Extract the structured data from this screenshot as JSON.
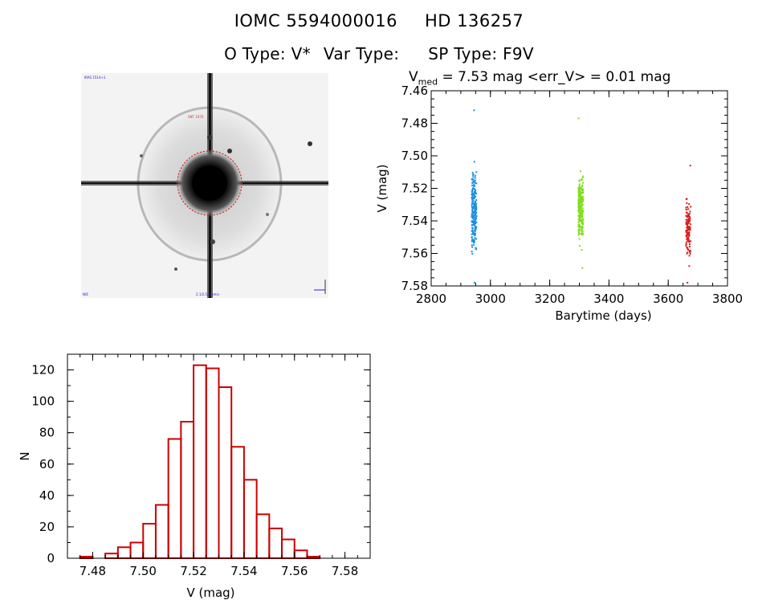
{
  "header": {
    "iomc": "IOMC 5594000016",
    "hd": "HD 136257",
    "otype": "O Type: V*",
    "vartype": "Var Type:",
    "sptype": "SP Type: F9V"
  },
  "lightcurve_title": {
    "v_symbol": "V",
    "v_sub": "med",
    "text": " = 7.53 mag <err_V> = 0.01 mag"
  },
  "colors": {
    "series1": "#1a90e0",
    "series2": "#7ee01a",
    "series3": "#d81e1e",
    "histogram": "#cc0000"
  },
  "chart_data": [
    {
      "type": "scatter",
      "xlabel": "Barytime (days)",
      "ylabel": "V (mag)",
      "xlim": [
        2800,
        3800
      ],
      "ylim": [
        7.58,
        7.46
      ],
      "y_inverted": true,
      "x_ticks": [
        "2800",
        "3000",
        "3200",
        "3400",
        "3600",
        "3800"
      ],
      "y_ticks": [
        "7.46",
        "7.48",
        "7.50",
        "7.52",
        "7.54",
        "7.56",
        "7.58"
      ],
      "series": [
        {
          "x": 2945,
          "count": 220,
          "min": 7.472,
          "max": 7.578,
          "center": 7.535
        },
        {
          "x": 3305,
          "count": 240,
          "min": 7.477,
          "max": 7.569,
          "center": 7.532
        },
        {
          "x": 3668,
          "count": 120,
          "min": 7.506,
          "max": 7.578,
          "center": 7.545
        }
      ]
    },
    {
      "type": "bar",
      "xlabel": "V (mag)",
      "ylabel": "N",
      "xlim": [
        7.47,
        7.59
      ],
      "ylim": [
        0,
        130
      ],
      "x_ticks": [
        "7.48",
        "7.50",
        "7.52",
        "7.54",
        "7.56",
        "7.58"
      ],
      "y_ticks": [
        "0",
        "20",
        "40",
        "60",
        "80",
        "100",
        "120"
      ],
      "bin_width": 0.005,
      "bin_starts": [
        7.475,
        7.48,
        7.485,
        7.49,
        7.495,
        7.5,
        7.505,
        7.51,
        7.515,
        7.52,
        7.525,
        7.53,
        7.535,
        7.54,
        7.545,
        7.55,
        7.555,
        7.56,
        7.565,
        7.57,
        7.575
      ],
      "values": [
        1,
        0,
        3,
        7,
        10,
        22,
        34,
        76,
        87,
        123,
        121,
        109,
        71,
        50,
        28,
        19,
        12,
        5,
        1,
        0,
        0
      ]
    }
  ]
}
